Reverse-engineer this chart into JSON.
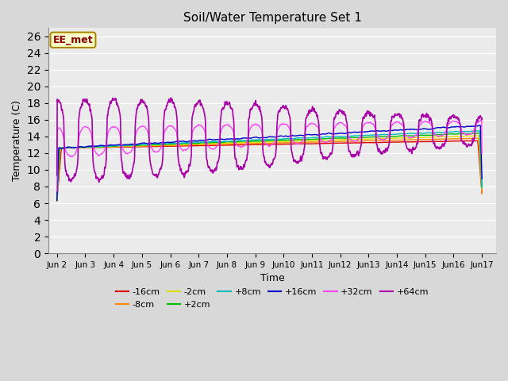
{
  "title": "Soil/Water Temperature Set 1",
  "xlabel": "Time",
  "ylabel": "Temperature (C)",
  "ylim": [
    0,
    27
  ],
  "yticks": [
    0,
    2,
    4,
    6,
    8,
    10,
    12,
    14,
    16,
    18,
    20,
    22,
    24,
    26
  ],
  "bg_color": "#d8d8d8",
  "plot_bg_color": "#ebebeb",
  "annotation_text": "EE_met",
  "annotation_bg": "#ffffcc",
  "annotation_border": "#aa8800",
  "annotation_text_color": "#880000",
  "series_colors": {
    "-16cm": "#dd0000",
    "-8cm": "#ff8800",
    "-2cm": "#dddd00",
    "+2cm": "#00bb00",
    "+8cm": "#00bbbb",
    "+16cm": "#0000cc",
    "+32cm": "#ff44ff",
    "+64cm": "#aa00aa"
  },
  "num_points": 1440,
  "days": 15
}
